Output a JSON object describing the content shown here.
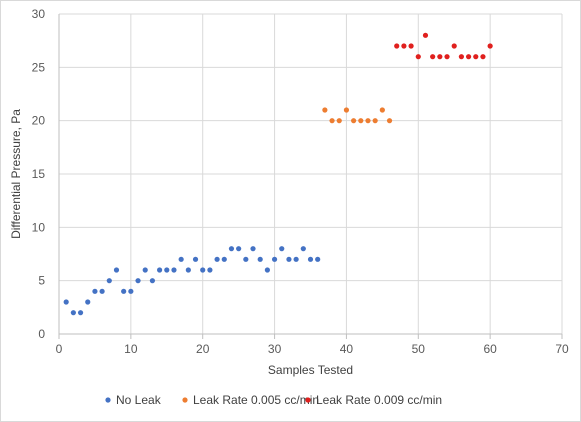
{
  "chart_data": {
    "type": "scatter",
    "xlabel": "Samples Tested",
    "ylabel": "Differential Pressure, Pa",
    "xlim": [
      0,
      70
    ],
    "ylim": [
      0,
      30
    ],
    "x_ticks": [
      "0",
      "10",
      "20",
      "30",
      "40",
      "50",
      "60",
      "70"
    ],
    "y_ticks": [
      "0",
      "5",
      "10",
      "15",
      "20",
      "25",
      "30"
    ],
    "grid": true,
    "legend_position": "bottom",
    "series": [
      {
        "name": "No Leak",
        "color": "#4472C4",
        "points": [
          [
            1,
            3
          ],
          [
            2,
            2
          ],
          [
            3,
            2
          ],
          [
            4,
            3
          ],
          [
            5,
            4
          ],
          [
            6,
            4
          ],
          [
            7,
            5
          ],
          [
            8,
            6
          ],
          [
            9,
            4
          ],
          [
            10,
            4
          ],
          [
            11,
            5
          ],
          [
            12,
            6
          ],
          [
            13,
            5
          ],
          [
            14,
            6
          ],
          [
            15,
            6
          ],
          [
            16,
            6
          ],
          [
            17,
            7
          ],
          [
            18,
            6
          ],
          [
            19,
            7
          ],
          [
            20,
            6
          ],
          [
            21,
            6
          ],
          [
            22,
            7
          ],
          [
            23,
            7
          ],
          [
            24,
            8
          ],
          [
            25,
            8
          ],
          [
            26,
            7
          ],
          [
            27,
            8
          ],
          [
            28,
            7
          ],
          [
            29,
            6
          ],
          [
            30,
            7
          ],
          [
            31,
            8
          ],
          [
            32,
            7
          ],
          [
            33,
            7
          ],
          [
            34,
            8
          ],
          [
            35,
            7
          ],
          [
            36,
            7
          ]
        ]
      },
      {
        "name": "Leak Rate 0.005 cc/min",
        "color": "#ED7D31",
        "points": [
          [
            37,
            21
          ],
          [
            38,
            20
          ],
          [
            39,
            20
          ],
          [
            40,
            21
          ],
          [
            41,
            20
          ],
          [
            42,
            20
          ],
          [
            43,
            20
          ],
          [
            44,
            20
          ],
          [
            45,
            21
          ],
          [
            46,
            20
          ]
        ]
      },
      {
        "name": "Leak Rate 0.009 cc/min",
        "color": "#E0201E",
        "points": [
          [
            47,
            27
          ],
          [
            48,
            27
          ],
          [
            49,
            27
          ],
          [
            50,
            26
          ],
          [
            51,
            28
          ],
          [
            52,
            26
          ],
          [
            53,
            26
          ],
          [
            54,
            26
          ],
          [
            55,
            27
          ],
          [
            56,
            26
          ],
          [
            57,
            26
          ],
          [
            58,
            26
          ],
          [
            59,
            26
          ],
          [
            60,
            27
          ]
        ]
      }
    ]
  }
}
